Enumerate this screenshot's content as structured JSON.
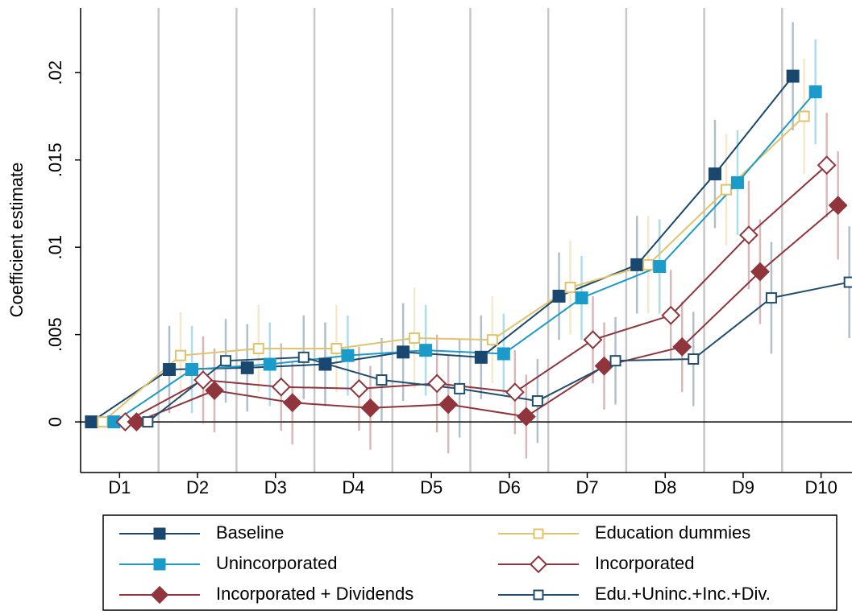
{
  "chart_data": {
    "type": "line",
    "y_label": "Coefficient estimate",
    "categories": [
      "D1",
      "D2",
      "D3",
      "D4",
      "D5",
      "D6",
      "D7",
      "D8",
      "D9",
      "D10"
    ],
    "ylim": [
      -0.0029,
      0.0237
    ],
    "yticks": [
      0,
      {
        "value": 0.005,
        "label": ".005"
      },
      {
        "value": 0.01,
        "label": ".01"
      },
      {
        "value": 0.015,
        "label": ".015"
      },
      {
        "value": 0.02,
        "label": ".02"
      }
    ],
    "series": [
      {
        "name": "Baseline",
        "color": "#1a476f",
        "marker": "square",
        "filled": true,
        "values": [
          0,
          0.003,
          0.0031,
          0.0033,
          0.004,
          0.0037,
          0.0072,
          0.009,
          0.0142,
          0.0198
        ],
        "errors": [
          null,
          0.0025,
          0.0025,
          0.0024,
          0.0028,
          0.0024,
          0.0025,
          0.0028,
          0.0031,
          0.0031
        ]
      },
      {
        "name": "Education dummies",
        "color": "#e0c36a",
        "marker": "square",
        "filled": false,
        "values": [
          0,
          0.0038,
          0.0042,
          0.0042,
          0.0048,
          0.0047,
          0.0077,
          0.009,
          0.0133,
          0.0175
        ],
        "errors": [
          null,
          0.0025,
          0.0025,
          0.0025,
          0.0029,
          0.0025,
          0.0027,
          0.0028,
          0.0032,
          0.0033
        ]
      },
      {
        "name": "Unincorporated",
        "color": "#1a9bc9",
        "marker": "square",
        "filled": true,
        "values": [
          0,
          0.003,
          0.0033,
          0.0038,
          0.0041,
          0.0039,
          0.0071,
          0.0089,
          0.0137,
          0.0189
        ],
        "errors": [
          null,
          0.0025,
          0.0024,
          0.0023,
          0.0026,
          0.0023,
          0.0024,
          0.0027,
          0.003,
          0.003
        ]
      },
      {
        "name": "Incorporated",
        "color": "#90353b",
        "marker": "diamond",
        "filled": false,
        "values": [
          0,
          0.0024,
          0.002,
          0.0019,
          0.0022,
          0.0017,
          0.0047,
          0.0061,
          0.0107,
          0.0147
        ],
        "errors": [
          null,
          0.0025,
          0.0025,
          0.0024,
          0.0028,
          0.0024,
          0.0025,
          0.0026,
          0.0031,
          0.003
        ]
      },
      {
        "name": "Incorporated + Dividends",
        "color": "#90353b",
        "marker": "diamond",
        "filled": true,
        "values": [
          0,
          0.0018,
          0.0011,
          0.0008,
          0.001,
          0.0003,
          0.0032,
          0.0043,
          0.0086,
          0.0124
        ],
        "errors": [
          null,
          0.0024,
          0.0024,
          0.0024,
          0.0028,
          0.0024,
          0.0025,
          0.0026,
          0.003,
          0.0031
        ]
      },
      {
        "name": "Edu.+Uninc.+Inc.+Div.",
        "color": "#1f4e6e",
        "marker": "square",
        "filled": false,
        "values": [
          0,
          0.0035,
          0.0037,
          0.0024,
          0.0019,
          0.0012,
          0.0035,
          0.0036,
          0.0071,
          0.008
        ],
        "errors": [
          null,
          0.0024,
          0.0024,
          0.0024,
          0.0028,
          0.0024,
          0.0025,
          0.0027,
          0.0032,
          0.0032
        ]
      }
    ]
  }
}
